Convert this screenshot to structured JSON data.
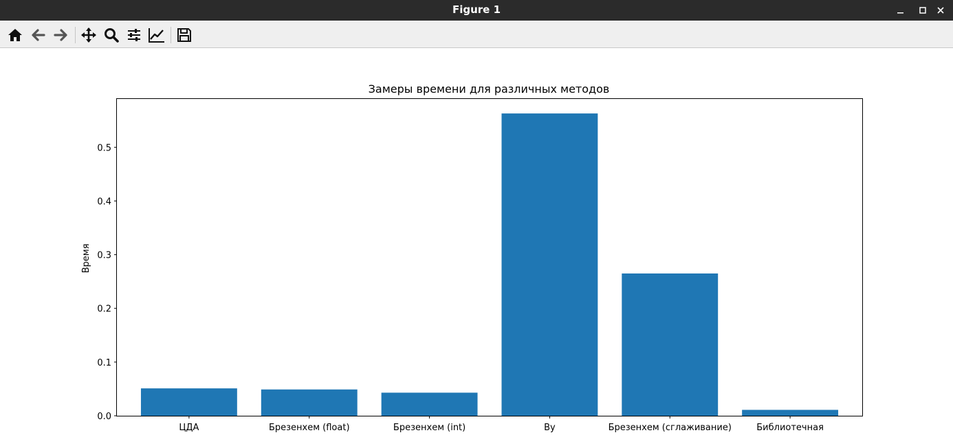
{
  "window": {
    "title": "Figure 1"
  },
  "toolbar": {
    "buttons": [
      {
        "id": "home",
        "icon": "home-icon"
      },
      {
        "id": "back",
        "icon": "arrow-left-icon"
      },
      {
        "id": "forward",
        "icon": "arrow-right-icon"
      },
      {
        "id": "pan",
        "icon": "move-icon"
      },
      {
        "id": "zoom",
        "icon": "zoom-icon"
      },
      {
        "id": "configure",
        "icon": "sliders-icon"
      },
      {
        "id": "edit",
        "icon": "line-chart-icon"
      },
      {
        "id": "save",
        "icon": "save-icon"
      }
    ]
  },
  "chart_data": {
    "type": "bar",
    "title": "Замеры времени для различных методов",
    "xlabel": "",
    "ylabel": "Время",
    "categories": [
      "ЦДА",
      "Брезенхем (float)",
      "Брезенхем (int)",
      "Ву",
      "Брезенхем (сглаживание)",
      "Библиотечная"
    ],
    "values": [
      0.051,
      0.049,
      0.043,
      0.563,
      0.265,
      0.011
    ],
    "ylim": [
      0,
      0.59
    ],
    "yticks": [
      "0.0",
      "0.1",
      "0.2",
      "0.3",
      "0.4",
      "0.5"
    ],
    "bar_color": "#1f77b4",
    "grid": false,
    "legend": "none"
  }
}
